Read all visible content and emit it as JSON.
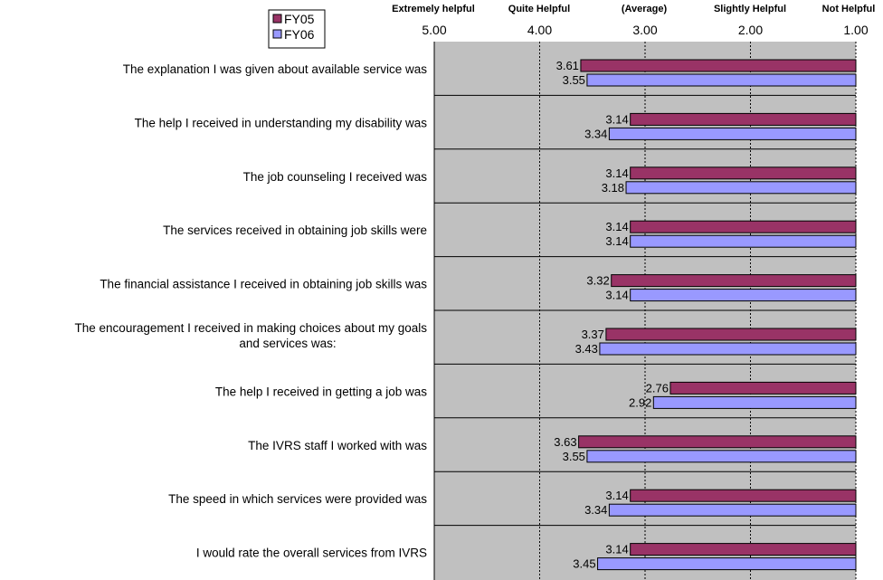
{
  "chart_data": {
    "type": "bar",
    "orientation": "horizontal",
    "x_reversed": true,
    "xlim": [
      5.0,
      1.0
    ],
    "grid": true,
    "legend_position": "top-left",
    "rating_labels": [
      "Extremely helpful",
      "Quite Helpful",
      "(Average)",
      "Slightly Helpful",
      "Not Helpful"
    ],
    "x_ticks": [
      "5.00",
      "4.00",
      "3.00",
      "2.00",
      "1.00"
    ],
    "categories": [
      "The explanation I was given about available service was",
      "The help I received in understanding my disability was",
      "The job counseling I received was",
      "The services received in obtaining job skills were",
      "The financial assistance I received in obtaining job skills was",
      "The encouragement I received in making choices about my goals and services was:",
      "The help I received in getting a job was",
      "The IVRS staff I worked with was",
      "The speed in which services were provided was",
      "I would rate the overall services from IVRS"
    ],
    "series": [
      {
        "name": "FY05",
        "color": "#993366",
        "values": [
          3.61,
          3.14,
          3.14,
          3.14,
          3.32,
          3.37,
          2.76,
          3.63,
          3.14,
          3.14
        ]
      },
      {
        "name": "FY06",
        "color": "#9999ff",
        "values": [
          3.55,
          3.34,
          3.18,
          3.14,
          3.14,
          3.43,
          2.92,
          3.55,
          3.34,
          3.45
        ]
      }
    ]
  }
}
